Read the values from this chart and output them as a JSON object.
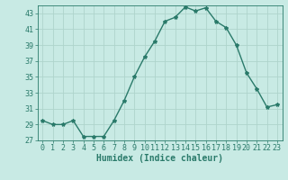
{
  "x": [
    0,
    1,
    2,
    3,
    4,
    5,
    6,
    7,
    8,
    9,
    10,
    11,
    12,
    13,
    14,
    15,
    16,
    17,
    18,
    19,
    20,
    21,
    22,
    23
  ],
  "y": [
    29.5,
    29.0,
    29.0,
    29.5,
    27.5,
    27.5,
    27.5,
    29.5,
    32.0,
    35.0,
    37.5,
    39.5,
    42.0,
    42.5,
    43.8,
    43.3,
    43.7,
    42.0,
    41.2,
    39.0,
    35.5,
    33.5,
    31.2,
    31.5
  ],
  "line_color": "#2a7a6a",
  "marker": "*",
  "marker_size": 3,
  "bg_color": "#c8eae4",
  "grid_color": "#aed4cc",
  "xlabel": "Humidex (Indice chaleur)",
  "ylim": [
    27,
    44
  ],
  "xlim": [
    -0.5,
    23.5
  ],
  "yticks": [
    27,
    29,
    31,
    33,
    35,
    37,
    39,
    41,
    43
  ],
  "xticks": [
    0,
    1,
    2,
    3,
    4,
    5,
    6,
    7,
    8,
    9,
    10,
    11,
    12,
    13,
    14,
    15,
    16,
    17,
    18,
    19,
    20,
    21,
    22,
    23
  ],
  "tick_fontsize": 6,
  "xlabel_fontsize": 7
}
